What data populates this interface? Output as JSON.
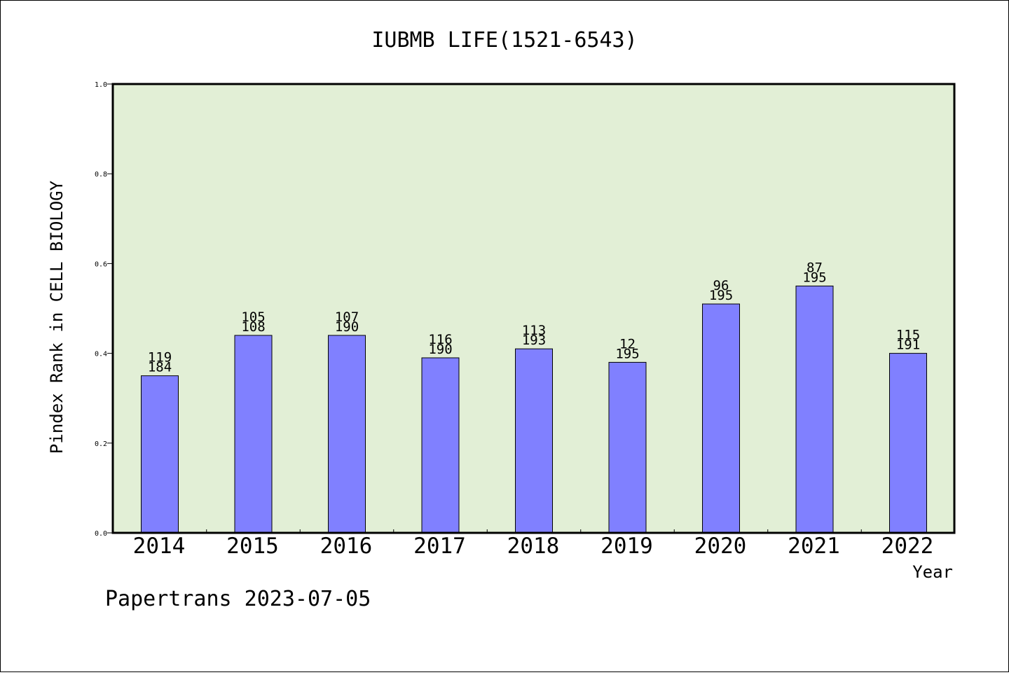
{
  "chart_data": {
    "type": "bar",
    "title": "IUBMB LIFE(1521-6543)",
    "xlabel": "Year",
    "ylabel": "Pindex Rank in CELL BIOLOGY",
    "ylim": [
      0,
      1.0
    ],
    "yticks": [
      "0.0",
      "0.2",
      "0.4",
      "0.6",
      "0.8",
      "1.0"
    ],
    "categories": [
      "2014",
      "2015",
      "2016",
      "2017",
      "2018",
      "2019",
      "2020",
      "2021",
      "2022"
    ],
    "values": [
      0.35,
      0.44,
      0.44,
      0.39,
      0.41,
      0.38,
      0.51,
      0.55,
      0.4
    ],
    "labels_top": [
      "119",
      "105",
      "107",
      "116",
      "113",
      "12",
      "96",
      "87",
      "115"
    ],
    "labels_bottom": [
      "184",
      "108",
      "190",
      "190",
      "193",
      "195",
      "195",
      "195",
      "191"
    ],
    "grid": false,
    "colors": {
      "bar": "#8080ff",
      "plot_bg": "#e2efd6",
      "axis": "#000000"
    }
  },
  "footer": {
    "text": "Papertrans 2023-07-05"
  }
}
